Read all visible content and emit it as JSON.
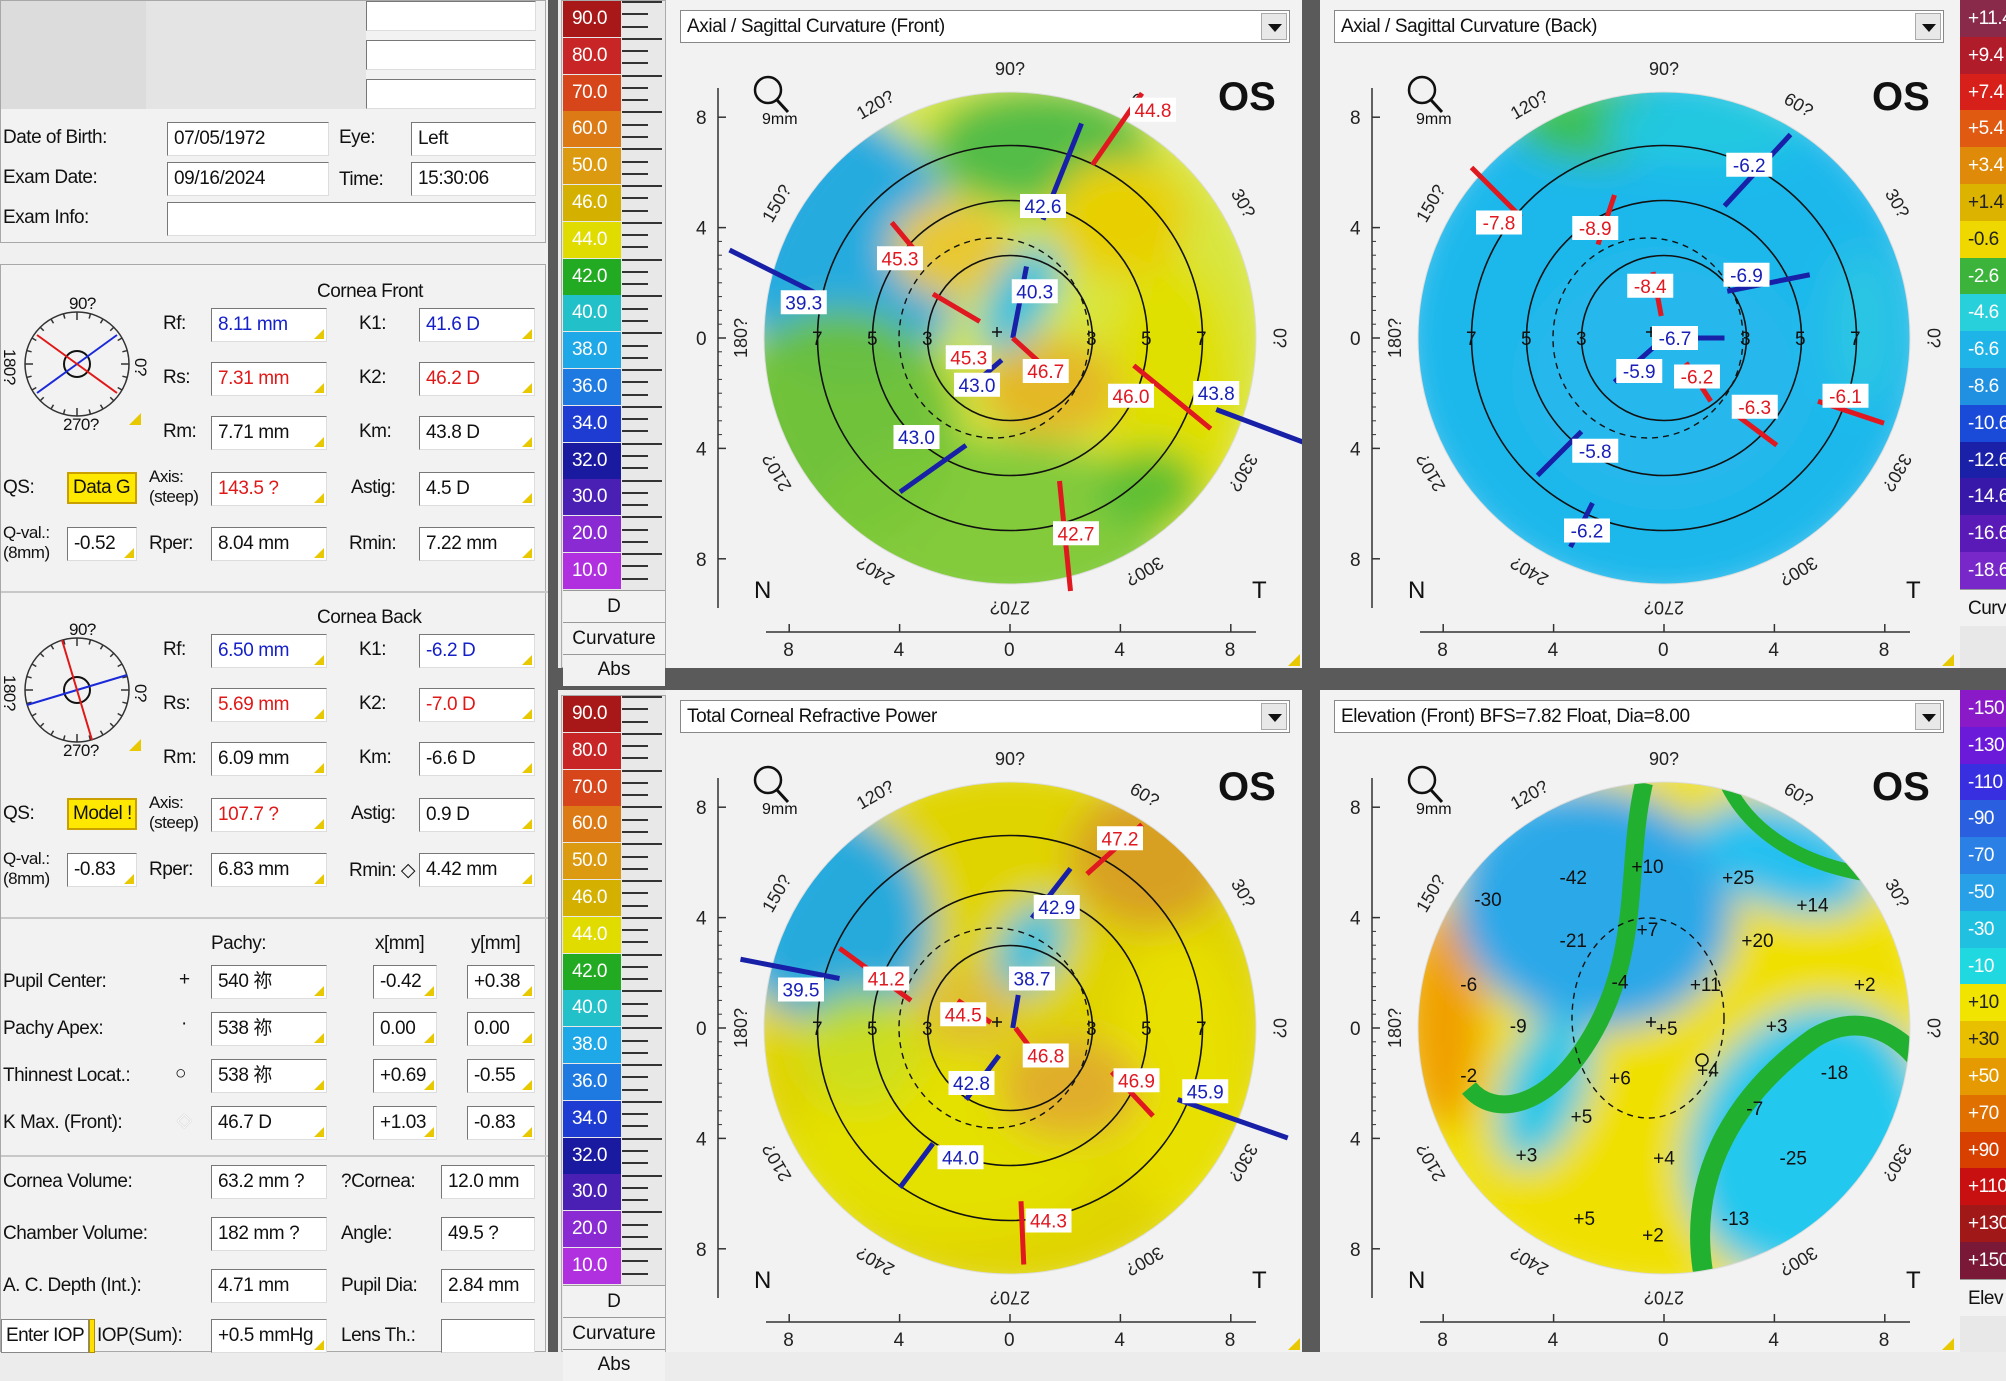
{
  "patient": {
    "dob_label": "Date of Birth:",
    "dob": "07/05/1972",
    "eye_label": "Eye:",
    "eye": "Left",
    "exam_date_label": "Exam Date:",
    "exam_date": "09/16/2024",
    "time_label": "Time:",
    "time": "15:30:06",
    "exam_info_label": "Exam Info:",
    "exam_info": ""
  },
  "front": {
    "title": "Cornea Front",
    "compass": {
      "top": "90?",
      "left": "180?",
      "right": "0?",
      "bottom": "270?"
    },
    "rf_label": "Rf:",
    "rf": "8.11 mm",
    "rs_label": "Rs:",
    "rs": "7.31 mm",
    "rm_label": "Rm:",
    "rm": "7.71 mm",
    "k1_label": "K1:",
    "k1": "41.6 D",
    "k2_label": "K2:",
    "k2": "46.2 D",
    "km_label": "Km:",
    "km": "43.8 D",
    "qs_label": "QS:",
    "qs": "Data G",
    "axis_label_1": "Axis:",
    "axis_label_2": "(steep)",
    "axis": "143.5 ?",
    "astig_label": "Astig:",
    "astig": "4.5 D",
    "qval_label_1": "Q-val.:",
    "qval_label_2": "(8mm)",
    "qval": "-0.52",
    "rper_label": "Rper:",
    "rper": "8.04 mm",
    "rmin_label": "Rmin:",
    "rmin": "7.22 mm"
  },
  "back": {
    "title": "Cornea Back",
    "compass": {
      "top": "90?",
      "left": "180?",
      "right": "0?",
      "bottom": "270?"
    },
    "rf_label": "Rf:",
    "rf": "6.50 mm",
    "rs_label": "Rs:",
    "rs": "5.69 mm",
    "rm_label": "Rm:",
    "rm": "6.09 mm",
    "k1_label": "K1:",
    "k1": "-6.2 D",
    "k2_label": "K2:",
    "k2": "-7.0 D",
    "km_label": "Km:",
    "km": "-6.6 D",
    "qs_label": "QS:",
    "qs": "Model !",
    "axis_label_1": "Axis:",
    "axis_label_2": "(steep)",
    "axis": "107.7 ?",
    "astig_label": "Astig:",
    "astig": "0.9 D",
    "qval_label_1": "Q-val.:",
    "qval_label_2": "(8mm)",
    "qval": "-0.83",
    "rper_label": "Rper:",
    "rper": "6.83 mm",
    "rmin_label": "Rmin: ◇",
    "rmin": "4.42 mm"
  },
  "pachy": {
    "col_pachy": "Pachy:",
    "col_x": "x[mm]",
    "col_y": "y[mm]",
    "rows": [
      {
        "label": "Pupil Center:",
        "sym": "+",
        "pachy": "540 祢",
        "x": "-0.42",
        "y": "+0.38"
      },
      {
        "label": "Pachy Apex:",
        "sym": "·",
        "pachy": "538 祢",
        "x": "0.00",
        "y": "0.00"
      },
      {
        "label": "Thinnest Locat.:",
        "sym": "○",
        "pachy": "538 祢",
        "x": "+0.69",
        "y": "-0.55"
      },
      {
        "label": "K Max. (Front):",
        "sym": "◇",
        "pachy": "46.7 D",
        "x": "+1.03",
        "y": "-0.83"
      }
    ]
  },
  "volume": {
    "cornea_volume_label": "Cornea Volume:",
    "cornea_volume": "63.2 mm ?",
    "cornea_label": "?Cornea:",
    "cornea": "12.0 mm",
    "chamber_volume_label": "Chamber Volume:",
    "chamber_volume": "182 mm ?",
    "angle_label": "Angle:",
    "angle": "49.5 ?",
    "acd_label": "A. C. Depth (Int.):",
    "acd": "4.71 mm",
    "pupil_dia_label": "Pupil Dia:",
    "pupil_dia": "2.84 mm",
    "enter_iop": "Enter IOP",
    "iop_label": "IOP(Sum):",
    "iop": "+0.5 mmHg",
    "lens_label": "Lens Th.:",
    "lens": ""
  },
  "curv_scale": {
    "values": [
      "90.0",
      "80.0",
      "70.0",
      "60.0",
      "50.0",
      "46.0",
      "44.0",
      "42.0",
      "40.0",
      "38.0",
      "36.0",
      "34.0",
      "32.0",
      "30.0",
      "20.0",
      "10.0"
    ],
    "colors": [
      "#a81818",
      "#c82626",
      "#d6461a",
      "#dc7a16",
      "#dc9a10",
      "#d4b000",
      "#e0dc00",
      "#22aa22",
      "#22c0c8",
      "#1ea8e8",
      "#1e7ae0",
      "#1e3cd2",
      "#1a1aa0",
      "#4a20b4",
      "#8a2ad2",
      "#b030e0"
    ],
    "cap1": "D",
    "cap2": "Curvature",
    "cap3": "Abs"
  },
  "diff_scale": {
    "values": [
      "+11.4",
      "+9.4",
      "+7.4",
      "+5.4",
      "+3.4",
      "+1.4",
      "-0.6",
      "-2.6",
      "-4.6",
      "-6.6",
      "-8.6",
      "-10.6",
      "-12.6",
      "-14.6",
      "-16.6",
      "-18.6"
    ],
    "colors": [
      "#8a2a4a",
      "#b01c2a",
      "#d8201a",
      "#e05a12",
      "#e08a0a",
      "#dcb400",
      "#eed800",
      "#3cb43c",
      "#28d0dc",
      "#1eb4e8",
      "#2090e0",
      "#1a4ad8",
      "#1a20a8",
      "#3818a8",
      "#5a1ab8",
      "#7828c8"
    ],
    "cap": "Curv"
  },
  "elev_scale": {
    "values": [
      "-150",
      "-130",
      "-110",
      "-90",
      "-70",
      "-50",
      "-30",
      "-10",
      "+10",
      "+30",
      "+50",
      "+70",
      "+90",
      "+110",
      "+130",
      "+150"
    ],
    "colors": [
      "#8a1ac8",
      "#6a1ad8",
      "#3830e0",
      "#2a60e0",
      "#2a80e4",
      "#28a0e8",
      "#20c0e0",
      "#20d8e0",
      "#f0e400",
      "#e8c000",
      "#e49a00",
      "#e07000",
      "#d84000",
      "#c81010",
      "#a01818",
      "#7a1838"
    ],
    "cap": "Elev"
  },
  "maps": [
    {
      "title": "Axial / Sagittal Curvature (Front)",
      "eye": "OS",
      "zoom": "9mm",
      "deg": [
        "90?",
        "60?",
        "30?",
        "0?",
        "330?",
        "300?",
        "270?",
        "240?",
        "210?",
        "180?",
        "150?",
        "120?"
      ],
      "nasal": "N",
      "temporal": "T",
      "ring_labels": [
        "3",
        "5",
        "7"
      ],
      "axis_ticks": [
        "8",
        "4",
        "0",
        "4",
        "8"
      ],
      "values": [
        {
          "t": "44.8",
          "c": "red"
        },
        {
          "t": "42.6",
          "c": "blue"
        },
        {
          "t": "45.3",
          "c": "red"
        },
        {
          "t": "39.3",
          "c": "blue"
        },
        {
          "t": "40.3",
          "c": "blue"
        },
        {
          "t": "45.3",
          "c": "red"
        },
        {
          "t": "46.7",
          "c": "red"
        },
        {
          "t": "43.0",
          "c": "blue"
        },
        {
          "t": "46.0",
          "c": "red"
        },
        {
          "t": "43.8",
          "c": "blue"
        },
        {
          "t": "43.0",
          "c": "blue"
        },
        {
          "t": "42.7",
          "c": "red"
        }
      ]
    },
    {
      "title": "Axial / Sagittal Curvature (Back)",
      "eye": "OS",
      "zoom": "9mm",
      "deg": [
        "90?",
        "60?",
        "30?",
        "0?",
        "330?",
        "300?",
        "270?",
        "240?",
        "210?",
        "180?",
        "150?",
        "120?"
      ],
      "nasal": "N",
      "temporal": "T",
      "ring_labels": [
        "3",
        "5",
        "7"
      ],
      "axis_ticks": [
        "8",
        "4",
        "0",
        "4",
        "8"
      ],
      "values": [
        {
          "t": "-6.2",
          "c": "blue"
        },
        {
          "t": "-7.8",
          "c": "red"
        },
        {
          "t": "-8.9",
          "c": "red"
        },
        {
          "t": "-6.9",
          "c": "blue"
        },
        {
          "t": "-8.4",
          "c": "red"
        },
        {
          "t": "-6.7",
          "c": "blue"
        },
        {
          "t": "-5.9",
          "c": "blue"
        },
        {
          "t": "-6.2",
          "c": "red"
        },
        {
          "t": "-6.3",
          "c": "red"
        },
        {
          "t": "-6.1",
          "c": "red"
        },
        {
          "t": "-5.8",
          "c": "blue"
        },
        {
          "t": "-6.2",
          "c": "blue"
        }
      ]
    },
    {
      "title": "Total Corneal Refractive Power",
      "eye": "OS",
      "zoom": "9mm",
      "deg": [
        "90?",
        "60?",
        "30?",
        "0?",
        "330?",
        "300?",
        "270?",
        "240?",
        "210?",
        "180?",
        "150?",
        "120?"
      ],
      "nasal": "N",
      "temporal": "T",
      "ring_labels": [
        "3",
        "5",
        "7"
      ],
      "axis_ticks": [
        "8",
        "4",
        "0",
        "4",
        "8"
      ],
      "values": [
        {
          "t": "47.2",
          "c": "red"
        },
        {
          "t": "42.9",
          "c": "blue"
        },
        {
          "t": "39.5",
          "c": "blue"
        },
        {
          "t": "41.2",
          "c": "red"
        },
        {
          "t": "38.7",
          "c": "blue"
        },
        {
          "t": "44.5",
          "c": "red"
        },
        {
          "t": "46.8",
          "c": "red"
        },
        {
          "t": "42.8",
          "c": "blue"
        },
        {
          "t": "46.9",
          "c": "red"
        },
        {
          "t": "45.9",
          "c": "blue"
        },
        {
          "t": "44.0",
          "c": "blue"
        },
        {
          "t": "44.3",
          "c": "red"
        }
      ]
    },
    {
      "title": "Elevation (Front)  BFS=7.82 Float, Dia=8.00",
      "eye": "OS",
      "zoom": "9mm",
      "deg": [
        "90?",
        "60?",
        "30?",
        "0?",
        "330?",
        "300?",
        "270?",
        "240?",
        "210?",
        "180?",
        "150?",
        "120?"
      ],
      "nasal": "N",
      "temporal": "T",
      "ring_labels": [],
      "axis_ticks": [
        "8",
        "4",
        "0",
        "4",
        "8"
      ],
      "values": [
        {
          "t": "-42"
        },
        {
          "t": "+10"
        },
        {
          "t": "+25"
        },
        {
          "t": "-30"
        },
        {
          "t": "+7"
        },
        {
          "t": "+14"
        },
        {
          "t": "-21"
        },
        {
          "t": "+20"
        },
        {
          "t": "-6"
        },
        {
          "t": "-4"
        },
        {
          "t": "+11"
        },
        {
          "t": "+2"
        },
        {
          "t": "-9"
        },
        {
          "t": "+5"
        },
        {
          "t": "+3"
        },
        {
          "t": "-18"
        },
        {
          "t": "-2"
        },
        {
          "t": "+6"
        },
        {
          "t": "+4"
        },
        {
          "t": "+5"
        },
        {
          "t": "-7"
        },
        {
          "t": "+3"
        },
        {
          "t": "-25"
        },
        {
          "t": "+4"
        },
        {
          "t": "+5"
        },
        {
          "t": "+2"
        },
        {
          "t": "-13"
        }
      ]
    }
  ]
}
